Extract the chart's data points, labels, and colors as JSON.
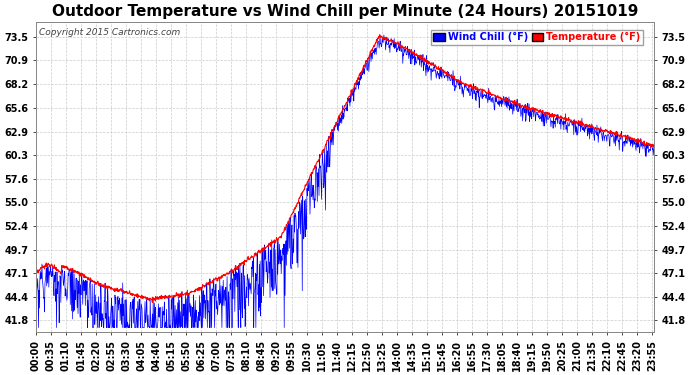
{
  "title": "Outdoor Temperature vs Wind Chill per Minute (24 Hours) 20151019",
  "copyright": "Copyright 2015 Cartronics.com",
  "legend_wind_chill": "Wind Chill (°F)",
  "legend_temperature": "Temperature (°F)",
  "yticks": [
    41.8,
    44.4,
    47.1,
    49.7,
    52.4,
    55.0,
    57.6,
    60.3,
    62.9,
    65.6,
    68.2,
    70.9,
    73.5
  ],
  "ylim": [
    40.5,
    75.2
  ],
  "bg_color": "#ffffff",
  "grid_color": "#cccccc",
  "wind_chill_color": "#0000ff",
  "temperature_color": "#ff0000",
  "title_fontsize": 11,
  "tick_fontsize": 7,
  "xlabel_rotation": 90,
  "figwidth": 6.9,
  "figheight": 3.75,
  "dpi": 100
}
